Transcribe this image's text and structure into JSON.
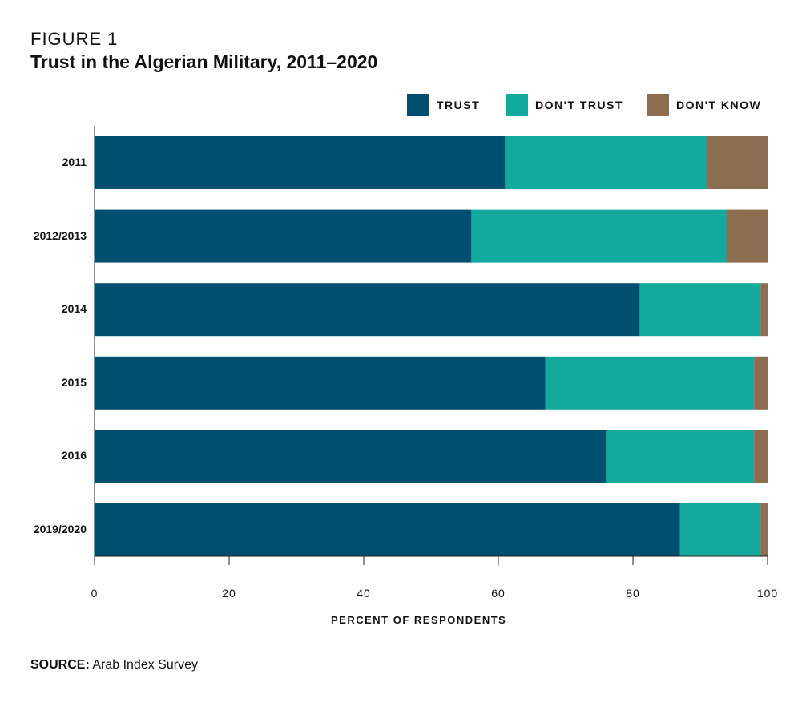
{
  "figure_label": "FIGURE 1",
  "chart_data": {
    "type": "bar",
    "orientation": "horizontal",
    "stacked": true,
    "title": "Trust in the Algerian Military, 2011–2020",
    "categories": [
      "2011",
      "2012/2013",
      "2014",
      "2015",
      "2016",
      "2019/2020"
    ],
    "series": [
      {
        "name": "TRUST",
        "color": "#004F71",
        "values": [
          61,
          56,
          81,
          67,
          76,
          87
        ]
      },
      {
        "name": "DON'T TRUST",
        "color": "#14A99D",
        "values": [
          30,
          38,
          18,
          31,
          22,
          12
        ]
      },
      {
        "name": "DON'T KNOW",
        "color": "#8C6D4F",
        "values": [
          9,
          6,
          1,
          2,
          2,
          1
        ]
      }
    ],
    "xlabel": "PERCENT OF RESPONDENTS",
    "ylabel": "",
    "xlim": [
      0,
      100
    ],
    "xticks": [
      "0",
      "20",
      "40",
      "60",
      "80",
      "100"
    ],
    "grid": false,
    "legend_position": "top-right"
  },
  "source": {
    "label": "SOURCE:",
    "text": " Arab Index Survey"
  }
}
